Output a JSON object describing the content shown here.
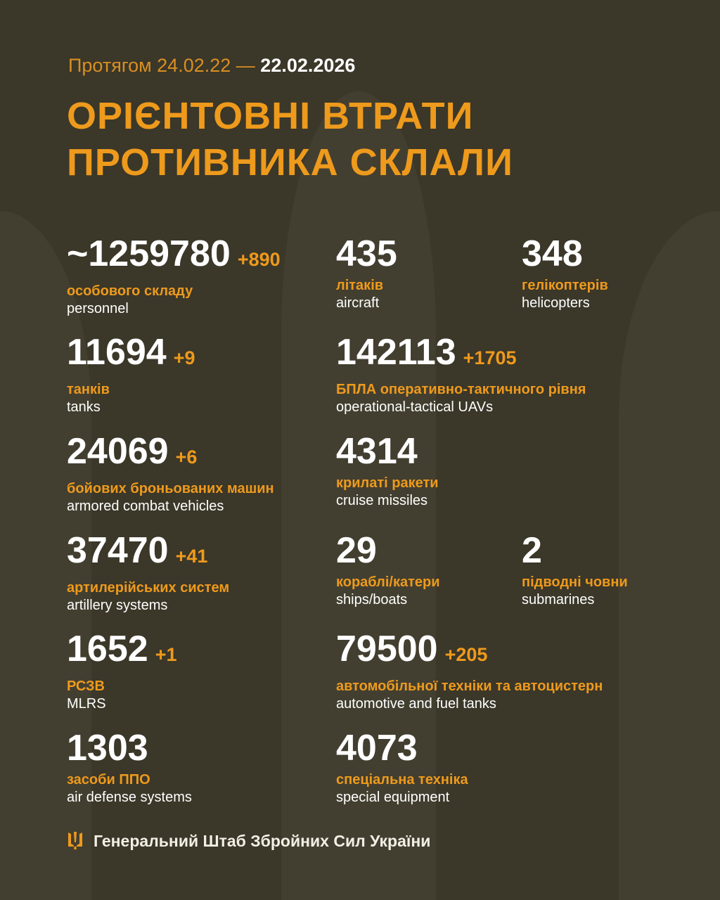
{
  "header": {
    "period_prefix": "Протягом 24.02.22 —",
    "period_end": "22.02.2026",
    "title_line1": "ОРІЄНТОВНІ ВТРАТИ",
    "title_line2": "ПРОТИВНИКА СКЛАЛИ"
  },
  "stats": [
    {
      "value": "~1259780",
      "increase": "+890",
      "ua": "особового складу",
      "en": "personnel"
    },
    {
      "value": "435",
      "increase": "",
      "ua": "літаків",
      "en": "aircraft"
    },
    {
      "value": "348",
      "increase": "",
      "ua": "гелікоптерів",
      "en": "helicopters"
    },
    {
      "value": "11694",
      "increase": "+9",
      "ua": "танків",
      "en": "tanks"
    },
    {
      "value": "142113",
      "increase": "+1705",
      "ua": "БПЛА оперативно-тактичного рівня",
      "en": "operational-tactical UAVs"
    },
    {
      "value": "24069",
      "increase": "+6",
      "ua": "бойових броньованих машин",
      "en": "armored combat vehicles"
    },
    {
      "value": "4314",
      "increase": "",
      "ua": "крилаті ракети",
      "en": "cruise missiles"
    },
    {
      "value": "37470",
      "increase": "+41",
      "ua": "артилерійських систем",
      "en": "artillery systems"
    },
    {
      "value": "29",
      "increase": "",
      "ua": "кораблі/катери",
      "en": "ships/boats"
    },
    {
      "value": "2",
      "increase": "",
      "ua": "підводні човни",
      "en": "submarines"
    },
    {
      "value": "1652",
      "increase": "+1",
      "ua": "РСЗВ",
      "en": "MLRS"
    },
    {
      "value": "79500",
      "increase": "+205",
      "ua": "автомобільної техніки та автоцистерн",
      "en": "automotive and fuel tanks"
    },
    {
      "value": "1303",
      "increase": "",
      "ua": "засоби ППО",
      "en": "air defense systems"
    },
    {
      "value": "4073",
      "increase": "",
      "ua": "спеціальна техніка",
      "en": "special equipment"
    }
  ],
  "footer": {
    "icon": "trident-icon",
    "text": "Генеральний Штаб Збройних Сил України"
  },
  "colors": {
    "background": "#3b3729",
    "accent": "#ee9a1c",
    "text": "#ffffff"
  }
}
